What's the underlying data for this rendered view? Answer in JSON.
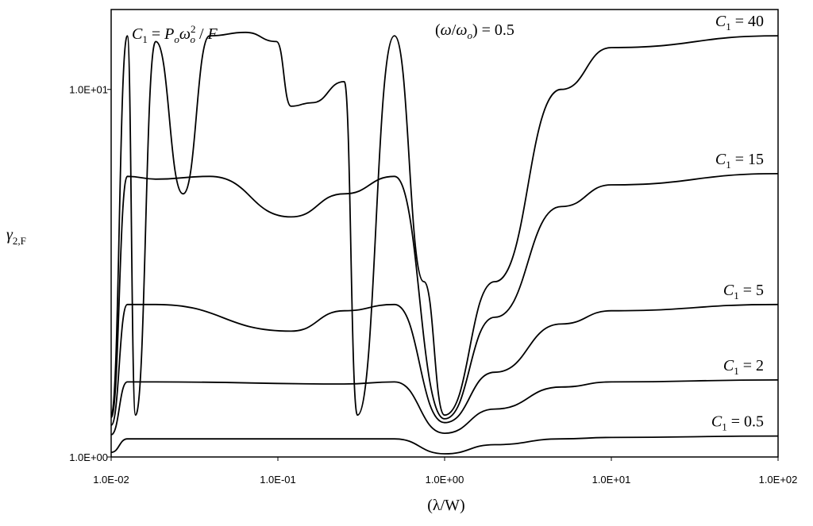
{
  "chart_data": {
    "type": "line",
    "xscale": "log",
    "yscale": "log",
    "xlim": [
      0.01,
      100
    ],
    "ylim": [
      1,
      16.5
    ],
    "x_ticks": [
      "1.0E-02",
      "1.0E-01",
      "1.0E+00",
      "1.0E+01",
      "1.0E+02"
    ],
    "y_ticks": [
      "1.0E+00",
      "1.0E+01"
    ],
    "xlabel": "(λ/W)",
    "ylabel": "γ2,F",
    "annotations": {
      "c1_definition": "C1 = Poωo²/F",
      "omega_ratio": "(ω/ωo) = 0.5"
    },
    "series": [
      {
        "name": "C1 = 40",
        "label_sub": "1",
        "label_rest": " = 40",
        "points": [
          [
            0.01,
            1.3
          ],
          [
            0.0125,
            14.0
          ],
          [
            0.014,
            1.3
          ],
          [
            0.0185,
            13.5
          ],
          [
            0.027,
            5.2
          ],
          [
            0.039,
            14.0
          ],
          [
            0.064,
            14.3
          ],
          [
            0.098,
            13.5
          ],
          [
            0.12,
            9.0
          ],
          [
            0.16,
            9.2
          ],
          [
            0.25,
            10.5
          ],
          [
            0.3,
            1.3
          ],
          [
            0.5,
            14.0
          ],
          [
            0.75,
            3.0
          ],
          [
            1.0,
            1.3
          ],
          [
            2.0,
            3.0
          ],
          [
            5.0,
            10.0
          ],
          [
            10.0,
            13.0
          ],
          [
            100.0,
            14.0
          ]
        ]
      },
      {
        "name": "C1 = 15",
        "label_sub": "1",
        "label_rest": " = 15",
        "points": [
          [
            0.01,
            1.28
          ],
          [
            0.0125,
            5.8
          ],
          [
            0.0185,
            5.7
          ],
          [
            0.039,
            5.8
          ],
          [
            0.12,
            4.5
          ],
          [
            0.25,
            5.2
          ],
          [
            0.5,
            5.8
          ],
          [
            1.0,
            1.27
          ],
          [
            2.0,
            2.4
          ],
          [
            5.0,
            4.8
          ],
          [
            10.0,
            5.5
          ],
          [
            100.0,
            5.9
          ]
        ]
      },
      {
        "name": "C1 = 5",
        "label_sub": "1",
        "label_rest": " = 5",
        "points": [
          [
            0.01,
            1.22
          ],
          [
            0.0125,
            2.6
          ],
          [
            0.0185,
            2.6
          ],
          [
            0.12,
            2.2
          ],
          [
            0.25,
            2.5
          ],
          [
            0.5,
            2.6
          ],
          [
            1.0,
            1.24
          ],
          [
            2.0,
            1.7
          ],
          [
            5.0,
            2.3
          ],
          [
            10.0,
            2.5
          ],
          [
            100.0,
            2.6
          ]
        ]
      },
      {
        "name": "C1 = 2",
        "label_sub": "1",
        "label_rest": " = 2",
        "points": [
          [
            0.01,
            1.15
          ],
          [
            0.0125,
            1.6
          ],
          [
            0.0185,
            1.6
          ],
          [
            0.25,
            1.58
          ],
          [
            0.5,
            1.6
          ],
          [
            1.0,
            1.16
          ],
          [
            2.0,
            1.35
          ],
          [
            5.0,
            1.55
          ],
          [
            10.0,
            1.6
          ],
          [
            100.0,
            1.62
          ]
        ]
      },
      {
        "name": "C1 = 0.5",
        "label_sub": "1",
        "label_rest": " = 0.5",
        "points": [
          [
            0.01,
            1.03
          ],
          [
            0.0125,
            1.12
          ],
          [
            0.0185,
            1.12
          ],
          [
            0.25,
            1.12
          ],
          [
            0.5,
            1.12
          ],
          [
            1.0,
            1.02
          ],
          [
            2.0,
            1.08
          ],
          [
            5.0,
            1.12
          ],
          [
            10.0,
            1.13
          ],
          [
            100.0,
            1.14
          ]
        ]
      }
    ]
  }
}
